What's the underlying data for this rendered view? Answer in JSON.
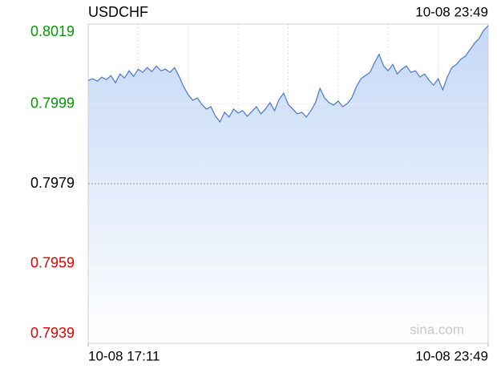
{
  "chart_data": {
    "type": "area",
    "title": "USDCHF",
    "updated": "10-08 23:49",
    "watermark": "sina.com",
    "categories": [
      "10-08 17:11",
      null,
      null,
      null,
      null,
      null,
      null,
      null,
      null,
      null,
      null,
      null,
      null,
      null,
      null,
      null,
      null,
      null,
      null,
      null,
      null,
      null,
      null,
      null,
      null,
      null,
      null,
      null,
      null,
      null,
      null,
      null,
      null,
      null,
      null,
      null,
      null,
      null,
      null,
      null,
      null,
      null,
      null,
      null,
      null,
      null,
      null,
      null,
      null,
      null,
      null,
      null,
      null,
      null,
      null,
      null,
      null,
      null,
      null,
      null,
      null,
      null,
      null,
      null,
      null,
      null,
      null,
      null,
      null,
      null,
      null,
      null,
      null,
      null,
      null,
      null,
      null,
      null,
      null,
      null,
      null,
      null,
      null,
      null,
      null,
      null,
      null,
      null,
      "10-08 23:49"
    ],
    "values": [
      0.80049,
      0.80053,
      0.80047,
      0.80057,
      0.80051,
      0.80061,
      0.80043,
      0.80065,
      0.80055,
      0.80073,
      0.80059,
      0.80077,
      0.80069,
      0.80081,
      0.80071,
      0.80085,
      0.80073,
      0.80077,
      0.80069,
      0.80081,
      0.80059,
      0.80033,
      0.80013,
      0.79999,
      0.80005,
      0.79989,
      0.79977,
      0.79983,
      0.79959,
      0.79945,
      0.79969,
      0.79957,
      0.79977,
      0.79967,
      0.79973,
      0.79959,
      0.79971,
      0.79983,
      0.79965,
      0.79977,
      0.79993,
      0.79973,
      0.80001,
      0.80017,
      0.79989,
      0.79977,
      0.79965,
      0.79969,
      0.79957,
      0.79973,
      0.79993,
      0.80029,
      0.80005,
      0.79993,
      0.79987,
      0.79997,
      0.79983,
      0.79991,
      0.80005,
      0.80033,
      0.80053,
      0.80061,
      0.80069,
      0.80093,
      0.80114,
      0.80085,
      0.80073,
      0.80089,
      0.80065,
      0.80077,
      0.80085,
      0.80069,
      0.80073,
      0.80057,
      0.80065,
      0.80049,
      0.80037,
      0.80053,
      0.80025,
      0.80057,
      0.80081,
      0.80089,
      0.80102,
      0.8011,
      0.80126,
      0.80142,
      0.80154,
      0.80174,
      0.80186
    ],
    "color": "#4a78c8",
    "ylim": [
      0.7939,
      0.8019
    ],
    "yticks": [
      0.7939,
      0.7959,
      0.7979,
      0.7999,
      0.8019
    ],
    "ytick_colors": [
      "#e00000",
      "#e00000",
      "#000000",
      "#009900",
      "#009900"
    ],
    "grid": true
  }
}
